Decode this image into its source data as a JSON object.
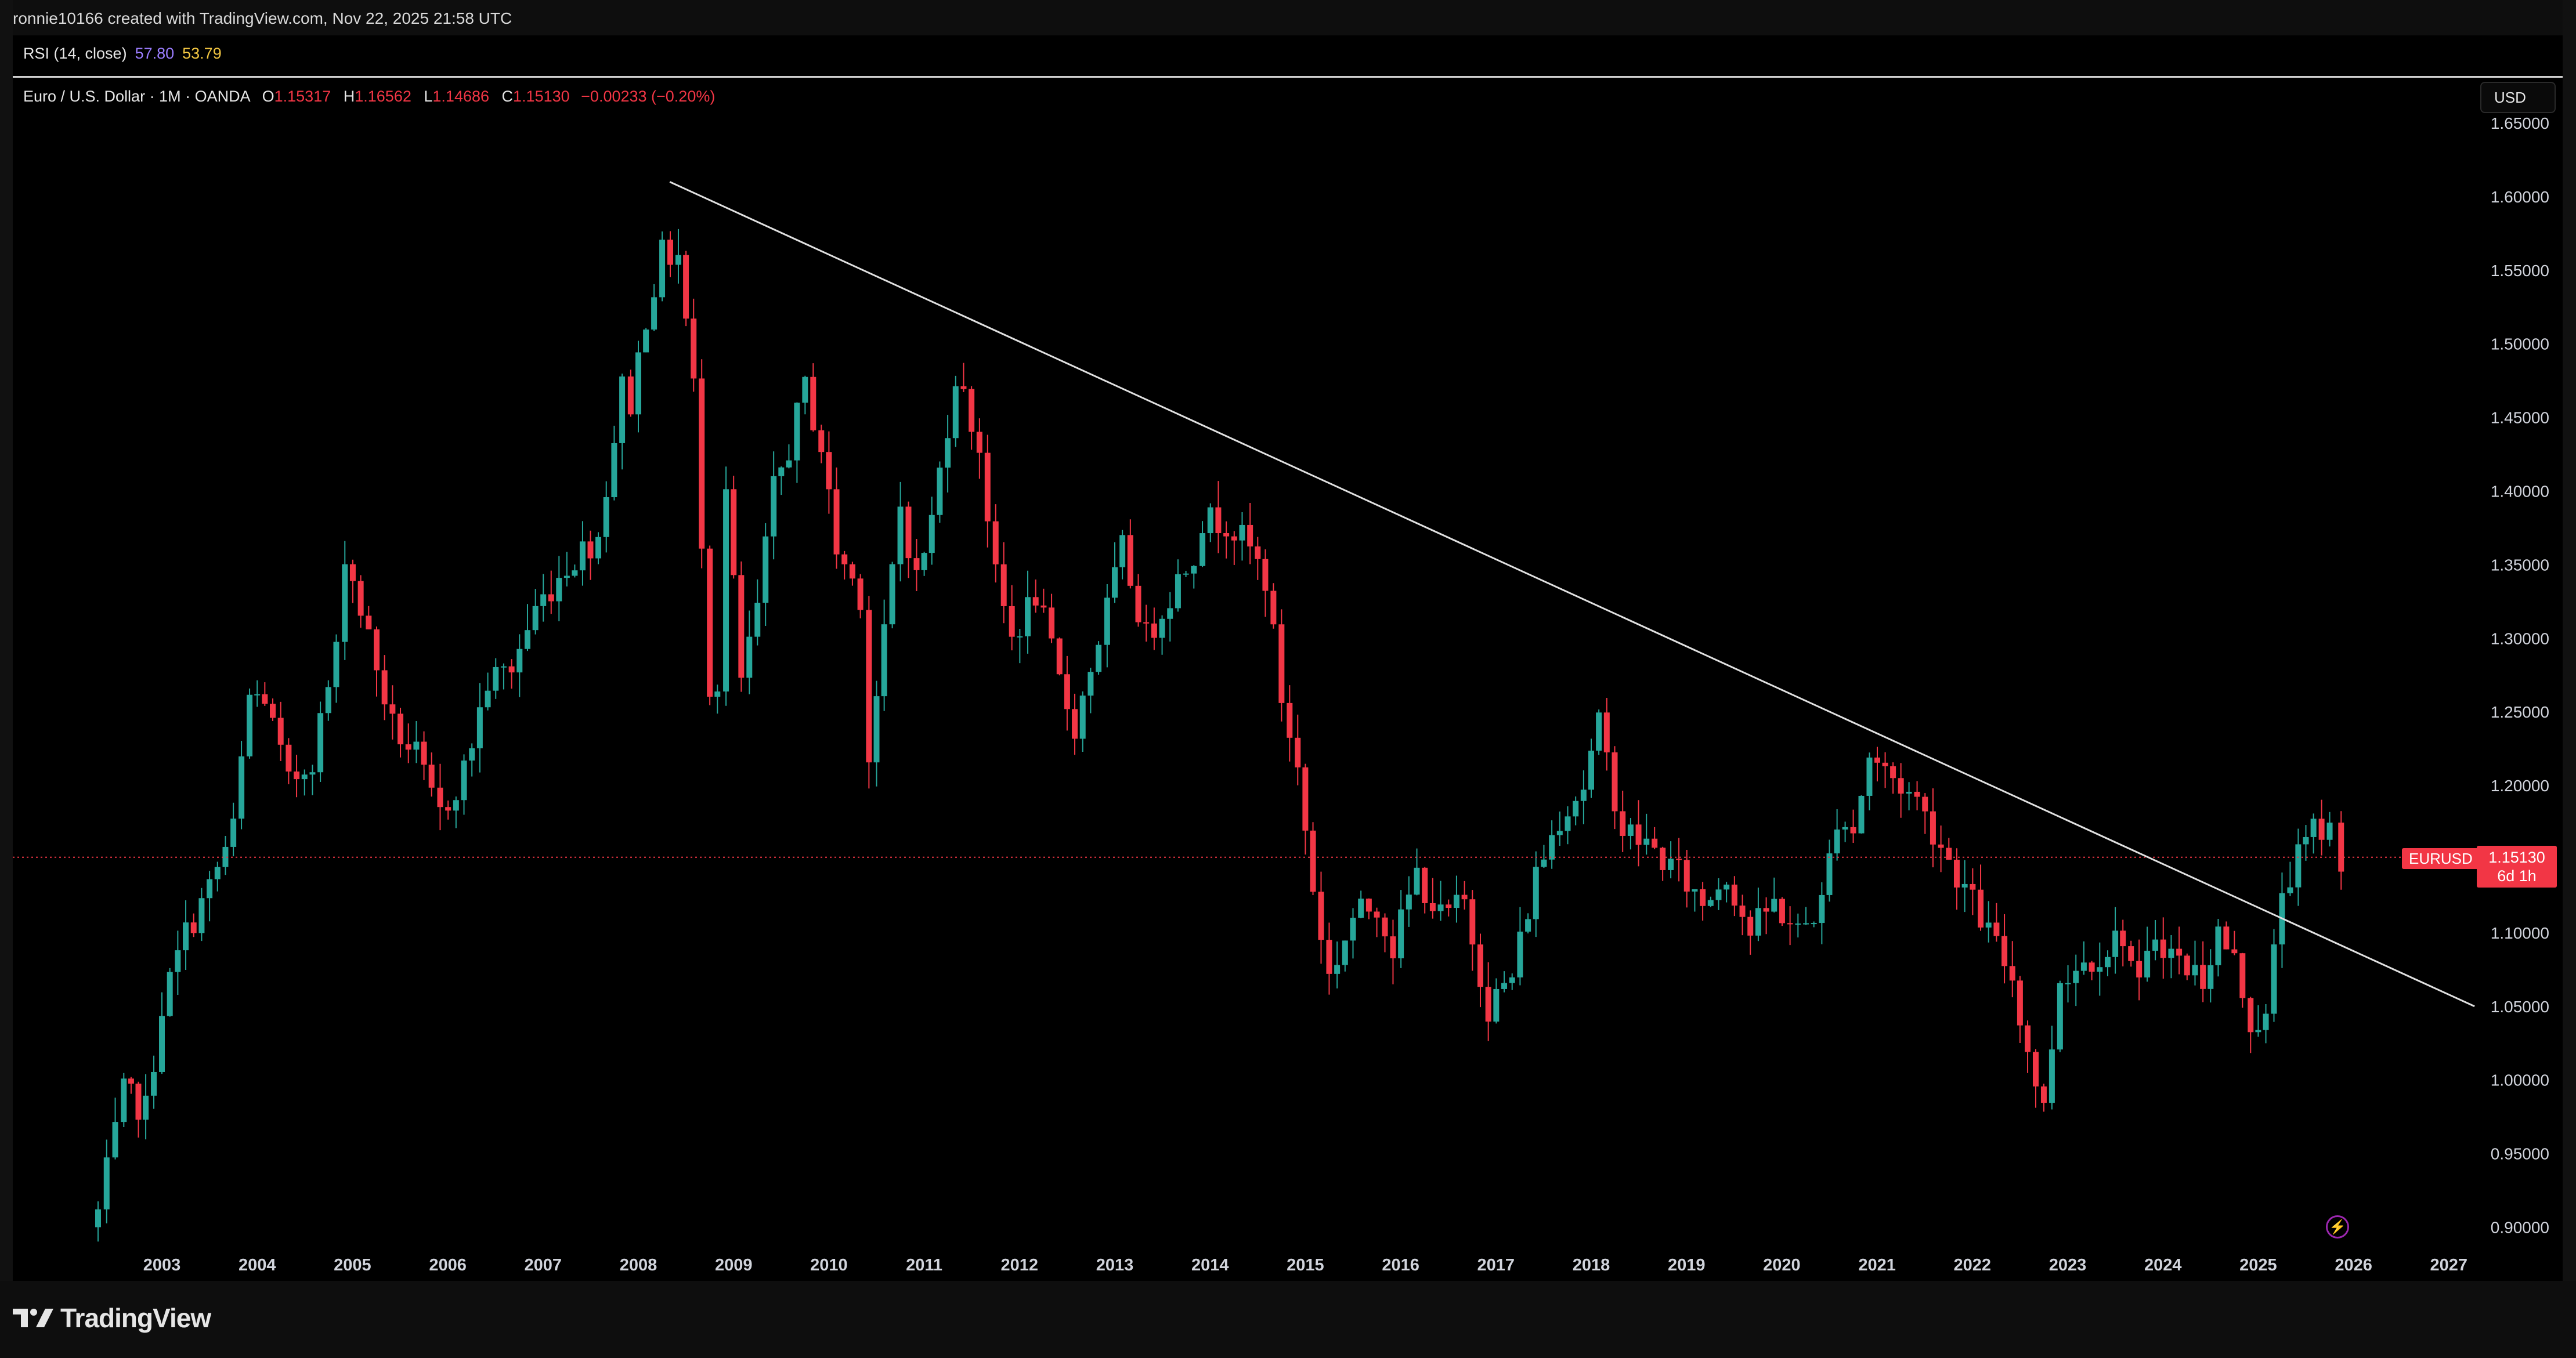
{
  "header": {
    "credit": "ronnie10166 created with TradingView.com, Nov 22, 2025 21:58 UTC"
  },
  "rsi": {
    "label": "RSI (14, close)",
    "value1": "57.80",
    "value2": "53.79"
  },
  "legend": {
    "symbol_desc": "Euro / U.S. Dollar · 1M · OANDA",
    "o_key": "O",
    "o_val": "1.15317",
    "h_key": "H",
    "h_val": "1.16562",
    "l_key": "L",
    "l_val": "1.14686",
    "c_key": "C",
    "c_val": "1.15130",
    "change": "−0.00233 (−0.20%)"
  },
  "currency_button": "USD",
  "price_tag": {
    "symbol": "EURUSD",
    "price": "1.15130",
    "countdown": "6d 1h"
  },
  "footer": {
    "brand": "TradingView"
  },
  "colors": {
    "up": "#26a69a",
    "down": "#f23645",
    "background": "#000000",
    "text": "#d1d4dc",
    "trendline": "#e0e0e0"
  },
  "chart_data": {
    "type": "candlestick",
    "symbol": "EURUSD",
    "timeframe": "1M",
    "y_ticks": [
      "0.90000",
      "0.95000",
      "1.00000",
      "1.05000",
      "1.10000",
      "1.15000",
      "1.20000",
      "1.25000",
      "1.30000",
      "1.35000",
      "1.40000",
      "1.45000",
      "1.50000",
      "1.55000",
      "1.60000",
      "1.65000"
    ],
    "x_ticks": [
      "2003",
      "2004",
      "2005",
      "2006",
      "2007",
      "2008",
      "2009",
      "2010",
      "2011",
      "2012",
      "2013",
      "2014",
      "2015",
      "2016",
      "2017",
      "2018",
      "2019",
      "2020",
      "2021",
      "2022",
      "2023",
      "2024",
      "2025",
      "2026",
      "2027"
    ],
    "ylim": [
      0.885,
      1.66
    ],
    "xlim": [
      2002.3,
      2027.8
    ],
    "last_price": 1.1513,
    "trendline": {
      "x1": 2008.33,
      "y1": 1.61,
      "x2": 2027.27,
      "y2": 1.05
    },
    "close_path": [
      [
        2002.33,
        0.91
      ],
      [
        2002.6,
        0.99
      ],
      [
        2002.83,
        0.98
      ],
      [
        2003.0,
        1.05
      ],
      [
        2003.25,
        1.1
      ],
      [
        2003.5,
        1.13
      ],
      [
        2003.75,
        1.17
      ],
      [
        2003.92,
        1.26
      ],
      [
        2004.08,
        1.26
      ],
      [
        2004.33,
        1.2
      ],
      [
        2004.58,
        1.22
      ],
      [
        2004.83,
        1.29
      ],
      [
        2004.92,
        1.36
      ],
      [
        2005.17,
        1.3
      ],
      [
        2005.42,
        1.24
      ],
      [
        2005.67,
        1.22
      ],
      [
        2005.83,
        1.19
      ],
      [
        2005.92,
        1.18
      ],
      [
        2006.17,
        1.21
      ],
      [
        2006.42,
        1.27
      ],
      [
        2006.67,
        1.28
      ],
      [
        2006.92,
        1.32
      ],
      [
        2007.25,
        1.35
      ],
      [
        2007.58,
        1.37
      ],
      [
        2007.83,
        1.47
      ],
      [
        2007.92,
        1.46
      ],
      [
        2008.08,
        1.52
      ],
      [
        2008.25,
        1.56
      ],
      [
        2008.42,
        1.56
      ],
      [
        2008.58,
        1.47
      ],
      [
        2008.75,
        1.27
      ],
      [
        2008.83,
        1.27
      ],
      [
        2008.92,
        1.4
      ],
      [
        2009.08,
        1.27
      ],
      [
        2009.25,
        1.32
      ],
      [
        2009.42,
        1.4
      ],
      [
        2009.58,
        1.43
      ],
      [
        2009.75,
        1.47
      ],
      [
        2009.92,
        1.43
      ],
      [
        2010.08,
        1.36
      ],
      [
        2010.33,
        1.33
      ],
      [
        2010.42,
        1.22
      ],
      [
        2010.58,
        1.3
      ],
      [
        2010.75,
        1.39
      ],
      [
        2010.92,
        1.34
      ],
      [
        2011.08,
        1.38
      ],
      [
        2011.33,
        1.48
      ],
      [
        2011.58,
        1.43
      ],
      [
        2011.75,
        1.34
      ],
      [
        2011.92,
        1.3
      ],
      [
        2012.17,
        1.33
      ],
      [
        2012.42,
        1.27
      ],
      [
        2012.58,
        1.24
      ],
      [
        2012.83,
        1.3
      ],
      [
        2012.92,
        1.32
      ],
      [
        2013.08,
        1.36
      ],
      [
        2013.33,
        1.3
      ],
      [
        2013.58,
        1.33
      ],
      [
        2013.83,
        1.36
      ],
      [
        2013.92,
        1.38
      ],
      [
        2014.17,
        1.38
      ],
      [
        2014.42,
        1.36
      ],
      [
        2014.58,
        1.34
      ],
      [
        2014.75,
        1.26
      ],
      [
        2014.92,
        1.21
      ],
      [
        2015.08,
        1.13
      ],
      [
        2015.25,
        1.07
      ],
      [
        2015.5,
        1.11
      ],
      [
        2015.75,
        1.12
      ],
      [
        2015.92,
        1.09
      ],
      [
        2016.17,
        1.14
      ],
      [
        2016.42,
        1.11
      ],
      [
        2016.67,
        1.12
      ],
      [
        2016.92,
        1.05
      ],
      [
        2017.17,
        1.07
      ],
      [
        2017.42,
        1.14
      ],
      [
        2017.67,
        1.18
      ],
      [
        2017.92,
        1.2
      ],
      [
        2018.08,
        1.24
      ],
      [
        2018.33,
        1.17
      ],
      [
        2018.58,
        1.16
      ],
      [
        2018.92,
        1.14
      ],
      [
        2019.17,
        1.12
      ],
      [
        2019.42,
        1.14
      ],
      [
        2019.67,
        1.1
      ],
      [
        2019.92,
        1.12
      ],
      [
        2020.17,
        1.1
      ],
      [
        2020.42,
        1.12
      ],
      [
        2020.58,
        1.18
      ],
      [
        2020.75,
        1.17
      ],
      [
        2020.92,
        1.22
      ],
      [
        2021.25,
        1.2
      ],
      [
        2021.42,
        1.19
      ],
      [
        2021.67,
        1.16
      ],
      [
        2021.92,
        1.13
      ],
      [
        2022.17,
        1.1
      ],
      [
        2022.42,
        1.07
      ],
      [
        2022.58,
        1.02
      ],
      [
        2022.75,
        0.98
      ],
      [
        2022.92,
        1.07
      ],
      [
        2023.17,
        1.08
      ],
      [
        2023.42,
        1.09
      ],
      [
        2023.58,
        1.1
      ],
      [
        2023.75,
        1.06
      ],
      [
        2023.92,
        1.1
      ],
      [
        2024.17,
        1.08
      ],
      [
        2024.42,
        1.07
      ],
      [
        2024.58,
        1.1
      ],
      [
        2024.75,
        1.08
      ],
      [
        2024.92,
        1.04
      ],
      [
        2025.08,
        1.04
      ],
      [
        2025.25,
        1.13
      ],
      [
        2025.42,
        1.15
      ],
      [
        2025.58,
        1.17
      ],
      [
        2025.75,
        1.17
      ],
      [
        2025.87,
        1.1513
      ]
    ]
  }
}
